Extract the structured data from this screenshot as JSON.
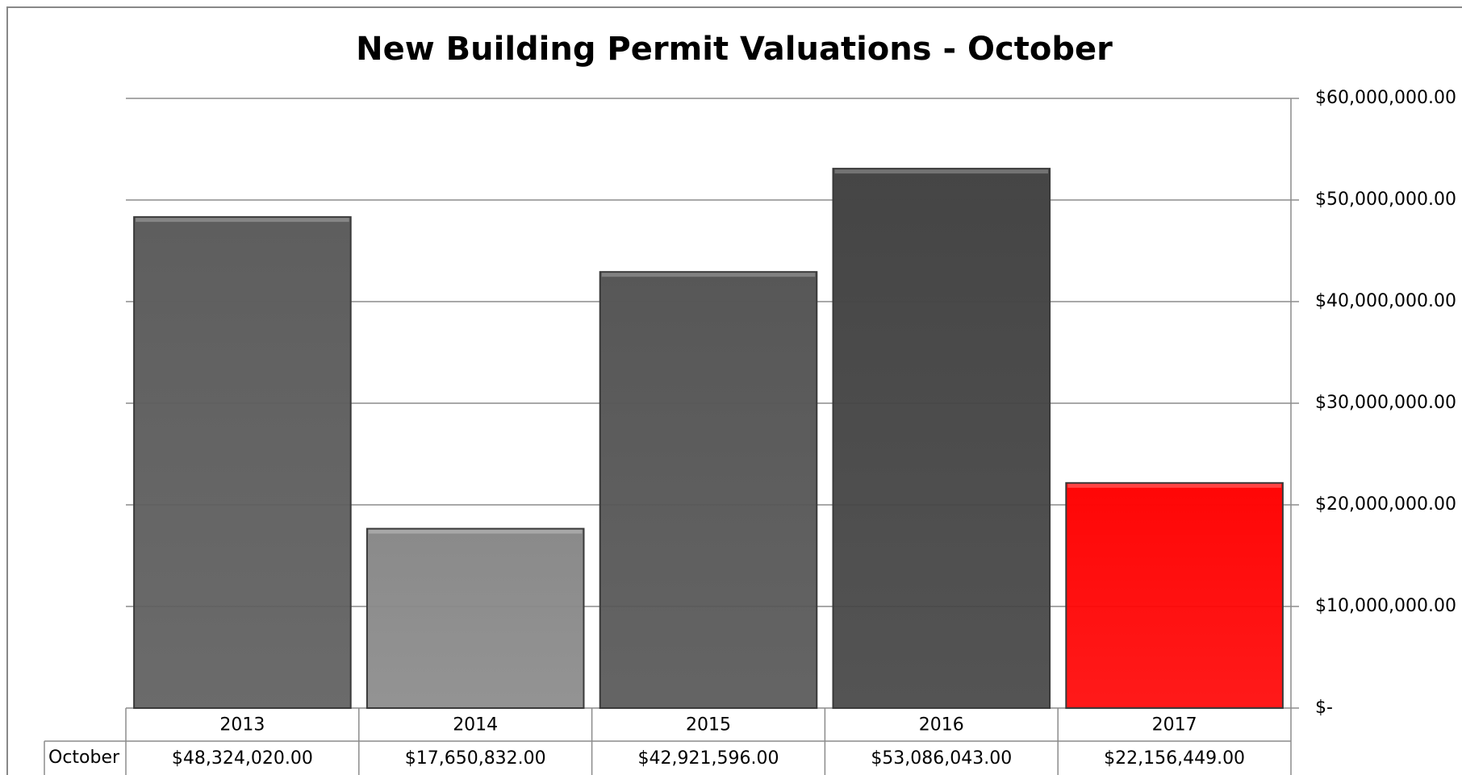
{
  "chart_data": {
    "type": "bar",
    "title": "New Building Permit Valuations - October",
    "categories": [
      "2013",
      "2014",
      "2015",
      "2016",
      "2017"
    ],
    "series": [
      {
        "name": "October",
        "colors": [
          "#5e5e5e",
          "#8a8a8a",
          "#575757",
          "#454545",
          "#ff0606"
        ],
        "values": [
          48324020,
          17650832,
          42921596,
          53086043,
          22156449
        ],
        "value_labels": [
          "$48,324,020.00",
          "$17,650,832.00",
          "$42,921,596.00",
          "$53,086,043.00",
          "$22,156,449.00"
        ]
      }
    ],
    "ylim": [
      0,
      60000000
    ],
    "yticks": [
      {
        "value": 0,
        "label": "$-"
      },
      {
        "value": 10000000,
        "label": "$10,000,000.00"
      },
      {
        "value": 20000000,
        "label": "$20,000,000.00"
      },
      {
        "value": 30000000,
        "label": "$30,000,000.00"
      },
      {
        "value": 40000000,
        "label": "$40,000,000.00"
      },
      {
        "value": 50000000,
        "label": "$50,000,000.00"
      },
      {
        "value": 60000000,
        "label": "$60,000,000.00"
      }
    ],
    "grid": true,
    "axis_side": "right",
    "data_table": true
  }
}
